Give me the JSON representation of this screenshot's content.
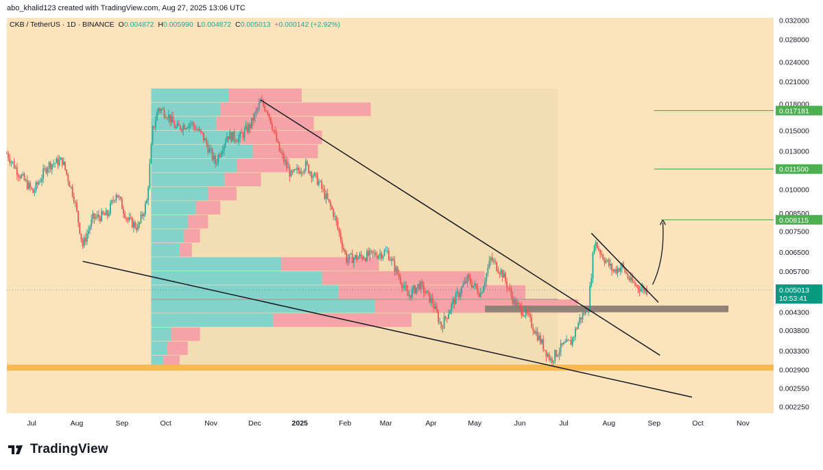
{
  "header": {
    "caption": "abo_khalid123 created with TradingView.com, Aug 27, 2025 13:06 UTC"
  },
  "footer": {
    "brand": "TradingView"
  },
  "colors": {
    "background": "#FBE3BC",
    "volume_profile_box": "#F3DDB3",
    "candle_up": "#26A69A",
    "candle_down": "#EF5350",
    "trendline": "#131722",
    "target_line": "#4CAF50",
    "support_zone": "#F8B84E",
    "resistance_box": "#8F8277",
    "price_label_bg": "#089981",
    "vp_up": "#82D3C9",
    "vp_down": "#F5A3A6"
  },
  "chart_data": {
    "type": "candlestick",
    "symbol_line": {
      "symbol": "CKB / TetherUS · 1D · BINANCE",
      "open_label": "O",
      "open": "0.004872",
      "high_label": "H",
      "high": "0.005990",
      "low_label": "L",
      "low": "0.004872",
      "close_label": "C",
      "close": "0.005013",
      "change": "+0.000142 (+2.92%)"
    },
    "y_axis": {
      "scale": "log",
      "ylim": [
        0.00215,
        0.0325
      ],
      "ticks": [
        "0.032000",
        "0.028000",
        "0.024000",
        "0.021000",
        "0.018000",
        "0.015000",
        "0.013000",
        "0.010000",
        "0.008500",
        "0.007500",
        "0.006500",
        "0.005700",
        "0.004300",
        "0.003800",
        "0.003300",
        "0.002900",
        "0.002550",
        "0.002250"
      ]
    },
    "x_axis": {
      "start": "2024-06-14",
      "end": "2025-11-22",
      "ticks": [
        {
          "label": "Jul",
          "date": "2024-07-01",
          "bold": false
        },
        {
          "label": "Aug",
          "date": "2024-08-01",
          "bold": false
        },
        {
          "label": "Sep",
          "date": "2024-09-01",
          "bold": false
        },
        {
          "label": "Oct",
          "date": "2024-10-01",
          "bold": false
        },
        {
          "label": "Nov",
          "date": "2024-11-01",
          "bold": false
        },
        {
          "label": "Dec",
          "date": "2024-12-01",
          "bold": false
        },
        {
          "label": "2025",
          "date": "2025-01-01",
          "bold": true
        },
        {
          "label": "Feb",
          "date": "2025-02-01",
          "bold": false
        },
        {
          "label": "Mar",
          "date": "2025-03-01",
          "bold": false
        },
        {
          "label": "Apr",
          "date": "2025-04-01",
          "bold": false
        },
        {
          "label": "May",
          "date": "2025-05-01",
          "bold": false
        },
        {
          "label": "Jun",
          "date": "2025-06-01",
          "bold": false
        },
        {
          "label": "Jul",
          "date": "2025-07-01",
          "bold": false
        },
        {
          "label": "Aug",
          "date": "2025-08-01",
          "bold": false
        },
        {
          "label": "Sep",
          "date": "2025-09-01",
          "bold": false
        },
        {
          "label": "Oct",
          "date": "2025-10-01",
          "bold": false
        },
        {
          "label": "Nov",
          "date": "2025-11-01",
          "bold": false
        }
      ]
    },
    "price_path": [
      [
        "2024-06-14",
        0.0128
      ],
      [
        "2024-06-22",
        0.0112
      ],
      [
        "2024-07-02",
        0.0098
      ],
      [
        "2024-07-12",
        0.0118
      ],
      [
        "2024-07-22",
        0.0122
      ],
      [
        "2024-07-30",
        0.0095
      ],
      [
        "2024-08-05",
        0.0068
      ],
      [
        "2024-08-12",
        0.0082
      ],
      [
        "2024-08-22",
        0.0084
      ],
      [
        "2024-08-28",
        0.0098
      ],
      [
        "2024-09-05",
        0.0081
      ],
      [
        "2024-09-12",
        0.0077
      ],
      [
        "2024-09-18",
        0.0092
      ],
      [
        "2024-09-22",
        0.015
      ],
      [
        "2024-09-26",
        0.0175
      ],
      [
        "2024-10-02",
        0.0168
      ],
      [
        "2024-10-08",
        0.0152
      ],
      [
        "2024-10-18",
        0.0158
      ],
      [
        "2024-10-26",
        0.0145
      ],
      [
        "2024-11-04",
        0.012
      ],
      [
        "2024-11-12",
        0.0145
      ],
      [
        "2024-11-20",
        0.0142
      ],
      [
        "2024-11-28",
        0.0155
      ],
      [
        "2024-12-05",
        0.0182
      ],
      [
        "2024-12-10",
        0.0172
      ],
      [
        "2024-12-18",
        0.013
      ],
      [
        "2024-12-26",
        0.011
      ],
      [
        "2025-01-05",
        0.0118
      ],
      [
        "2025-01-14",
        0.0105
      ],
      [
        "2025-01-24",
        0.0085
      ],
      [
        "2025-02-02",
        0.0062
      ],
      [
        "2025-02-12",
        0.0063
      ],
      [
        "2025-02-22",
        0.0064
      ],
      [
        "2025-03-02",
        0.0065
      ],
      [
        "2025-03-10",
        0.0055
      ],
      [
        "2025-03-16",
        0.0048
      ],
      [
        "2025-03-24",
        0.0052
      ],
      [
        "2025-04-02",
        0.0046
      ],
      [
        "2025-04-08",
        0.0039
      ],
      [
        "2025-04-16",
        0.0046
      ],
      [
        "2025-04-26",
        0.0054
      ],
      [
        "2025-05-05",
        0.0049
      ],
      [
        "2025-05-12",
        0.0062
      ],
      [
        "2025-05-20",
        0.0056
      ],
      [
        "2025-05-28",
        0.0046
      ],
      [
        "2025-06-06",
        0.0042
      ],
      [
        "2025-06-14",
        0.0036
      ],
      [
        "2025-06-22",
        0.0031
      ],
      [
        "2025-06-30",
        0.0034
      ],
      [
        "2025-07-06",
        0.0035
      ],
      [
        "2025-07-12",
        0.0041
      ],
      [
        "2025-07-18",
        0.0045
      ],
      [
        "2025-07-22",
        0.007
      ],
      [
        "2025-07-28",
        0.0063
      ],
      [
        "2025-08-04",
        0.0057
      ],
      [
        "2025-08-10",
        0.0059
      ],
      [
        "2025-08-16",
        0.0053
      ],
      [
        "2025-08-22",
        0.0051
      ],
      [
        "2025-08-27",
        0.005
      ]
    ],
    "volume_profile": {
      "from": "2024-09-21",
      "to": "2025-06-27",
      "price_high": 0.02,
      "price_low": 0.0029,
      "rows": [
        {
          "up": 0.19,
          "down": 0.18
        },
        {
          "up": 0.17,
          "down": 0.37
        },
        {
          "up": 0.16,
          "down": 0.24
        },
        {
          "up": 0.22,
          "down": 0.2
        },
        {
          "up": 0.25,
          "down": 0.16
        },
        {
          "up": 0.21,
          "down": 0.13
        },
        {
          "up": 0.18,
          "down": 0.09
        },
        {
          "up": 0.14,
          "down": 0.07
        },
        {
          "up": 0.11,
          "down": 0.06
        },
        {
          "up": 0.09,
          "down": 0.05
        },
        {
          "up": 0.08,
          "down": 0.04
        },
        {
          "up": 0.07,
          "down": 0.03
        },
        {
          "up": 0.32,
          "down": 0.24
        },
        {
          "up": 0.42,
          "down": 0.4
        },
        {
          "up": 0.46,
          "down": 0.46
        },
        {
          "up": 0.55,
          "down": 0.5
        },
        {
          "up": 0.3,
          "down": 0.34
        },
        {
          "up": 0.05,
          "down": 0.07
        },
        {
          "up": 0.04,
          "down": 0.05
        },
        {
          "up": 0.03,
          "down": 0.04
        }
      ]
    },
    "drawings": {
      "upper_trendline": {
        "from": [
          "2024-12-05",
          0.0185
        ],
        "to": [
          "2025-09-05",
          0.0032
        ]
      },
      "lower_trendline": {
        "from": [
          "2024-08-05",
          0.0061
        ],
        "to": [
          "2025-09-27",
          0.0024
        ]
      },
      "flag_upper": {
        "from": [
          "2025-07-20",
          0.0074
        ],
        "to": [
          "2025-09-04",
          0.0046
        ]
      },
      "poc_line": 0.0047,
      "resistance_box": {
        "from": "2025-05-08",
        "to": "2025-10-22",
        "top": 0.0045,
        "bottom": 0.0043
      },
      "support_zone": {
        "top": 0.003,
        "bottom": 0.00288
      },
      "projection_arrow": {
        "from": [
          "2025-08-31",
          0.0052
        ],
        "to": [
          "2025-09-07",
          0.0081
        ]
      },
      "current_price_line": 0.005013
    },
    "target_levels": [
      {
        "value": 0.017181,
        "label": "0.017181",
        "from": "2025-09-01"
      },
      {
        "value": 0.0115,
        "label": "0.011500",
        "from": "2025-09-01"
      },
      {
        "value": 0.008115,
        "label": "0.008115",
        "from": "2025-09-06"
      }
    ],
    "last_price": {
      "value": 0.005013,
      "label": "0.005013",
      "countdown": "10:53:41"
    }
  }
}
